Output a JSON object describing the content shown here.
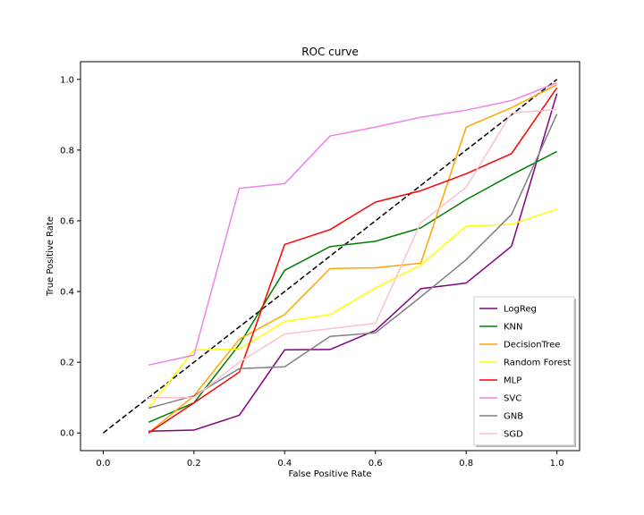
{
  "chart_data": {
    "type": "line",
    "title": "ROC curve",
    "xlabel": "False Positive Rate",
    "ylabel": "True Positive Rate",
    "xlim": [
      -0.05,
      1.05
    ],
    "ylim": [
      -0.05,
      1.05
    ],
    "xticks": [
      0.0,
      0.2,
      0.4,
      0.6,
      0.8,
      1.0
    ],
    "yticks": [
      0.0,
      0.2,
      0.4,
      0.6,
      0.8,
      1.0
    ],
    "xtick_labels": [
      "0.0",
      "0.2",
      "0.4",
      "0.6",
      "0.8",
      "1.0"
    ],
    "ytick_labels": [
      "0.0",
      "0.2",
      "0.4",
      "0.6",
      "0.8",
      "1.0"
    ],
    "grid": false,
    "legend_position": "lower-right",
    "x": [
      0.1,
      0.2,
      0.3,
      0.4,
      0.5,
      0.6,
      0.7,
      0.8,
      0.9,
      1.0
    ],
    "diagonal": {
      "x": [
        0.0,
        1.0
      ],
      "y": [
        0.0,
        1.0
      ],
      "color": "#000000",
      "dashed": true
    },
    "series": [
      {
        "name": "LogReg",
        "color": "#800080",
        "values": [
          0.005,
          0.008,
          0.05,
          0.235,
          0.236,
          0.29,
          0.408,
          0.424,
          0.528,
          0.96
        ]
      },
      {
        "name": "KNN",
        "color": "#008000",
        "values": [
          0.03,
          0.085,
          0.25,
          0.46,
          0.527,
          0.542,
          0.58,
          0.66,
          0.73,
          0.796
        ]
      },
      {
        "name": "DecisionTree",
        "color": "#FFA500",
        "values": [
          0.0,
          0.105,
          0.265,
          0.335,
          0.465,
          0.467,
          0.48,
          0.865,
          0.92,
          0.985
        ]
      },
      {
        "name": "Random Forest",
        "color": "#FFFF00",
        "values": [
          0.07,
          0.235,
          0.237,
          0.315,
          0.335,
          0.41,
          0.475,
          0.585,
          0.59,
          0.633
        ]
      },
      {
        "name": "MLP",
        "color": "#FF0000",
        "values": [
          0.0,
          0.085,
          0.172,
          0.533,
          0.575,
          0.653,
          0.685,
          0.733,
          0.79,
          0.976
        ]
      },
      {
        "name": "SVC",
        "color": "#EE82EE",
        "values": [
          0.192,
          0.22,
          0.692,
          0.705,
          0.84,
          0.865,
          0.893,
          0.913,
          0.94,
          0.99
        ]
      },
      {
        "name": "GNB",
        "color": "#808080",
        "values": [
          0.07,
          0.105,
          0.182,
          0.187,
          0.273,
          0.283,
          0.385,
          0.49,
          0.618,
          0.902
        ]
      },
      {
        "name": "SGD",
        "color": "#FFC0CB",
        "values": [
          0.1,
          0.1,
          0.2,
          0.28,
          0.295,
          0.31,
          0.595,
          0.695,
          0.905,
          0.915
        ]
      }
    ]
  }
}
